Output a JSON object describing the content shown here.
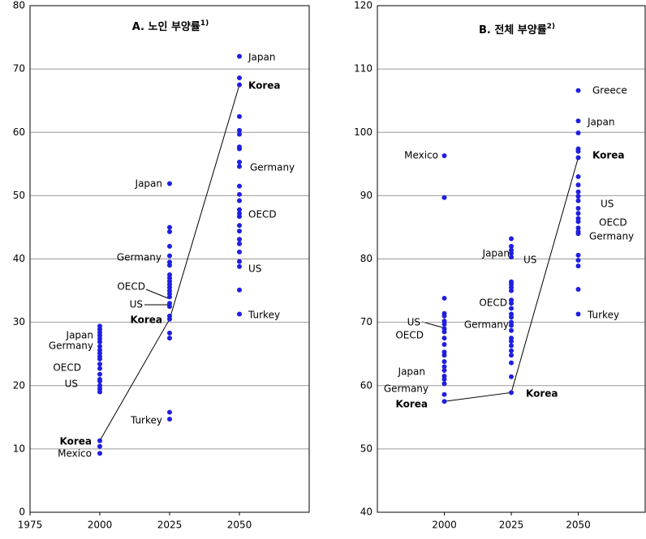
{
  "chart_data": [
    {
      "type": "scatter",
      "title": "A. 노인 부양률",
      "title_note": "1)",
      "xlim": [
        1975,
        2075
      ],
      "xticks": [
        1975,
        2000,
        2025,
        2050
      ],
      "ylim": [
        0,
        80
      ],
      "yticks": [
        0,
        10,
        20,
        30,
        40,
        50,
        60,
        70,
        80
      ],
      "grid": true,
      "color": "#1f1fe0",
      "line_color": "#000000",
      "groups": [
        {
          "x": 2000,
          "values": [
            9.3,
            10.4,
            11.3,
            19,
            19.5,
            20,
            20.7,
            21,
            21.8,
            22.7,
            23.4,
            24.2,
            24.6,
            25.1,
            25.6,
            26.2,
            26.9,
            27.4,
            27.9,
            28.4,
            28.9,
            29.4
          ]
        },
        {
          "x": 2025,
          "values": [
            51.9,
            45,
            44.3,
            42,
            40.5,
            39.5,
            39,
            37.5,
            37,
            36.5,
            36,
            35.5,
            35,
            34.5,
            34,
            33,
            32.5,
            31,
            30.5,
            28.3,
            27.5,
            15.8,
            14.7
          ]
        },
        {
          "x": 2050,
          "values": [
            72,
            68.6,
            67.5,
            62.5,
            60.3,
            59.7,
            57.7,
            57.4,
            55.3,
            54.6,
            51.5,
            50.2,
            49.2,
            47.8,
            47.2,
            46.7,
            45.3,
            44.4,
            43.1,
            42.4,
            41.1,
            39.6,
            38.8,
            35.1,
            31.3
          ]
        }
      ],
      "korea_line": {
        "x": [
          2000,
          2025,
          2050
        ],
        "values": [
          11.3,
          30.5,
          67.5
        ]
      },
      "annotations": [
        "Japan",
        "Korea",
        "Germany",
        "OECD",
        "US",
        "Turkey",
        "Japan",
        "Germany",
        "OECD",
        "US",
        "Korea",
        "Turkey",
        "Japan",
        "Germany",
        "OECD",
        "US",
        "Korea",
        "Mexico"
      ]
    },
    {
      "type": "scatter",
      "title": "B. 전체 부양률",
      "title_note": "2)",
      "xlim": [
        1975,
        2075
      ],
      "xticks": [
        2000,
        2025,
        2050
      ],
      "ylim": [
        40,
        120
      ],
      "yticks": [
        40,
        50,
        60,
        70,
        80,
        90,
        100,
        110,
        120
      ],
      "grid": true,
      "color": "#1f1fe0",
      "line_color": "#000000",
      "groups": [
        {
          "x": 2000,
          "values": [
            96.3,
            89.7,
            73.8,
            71.4,
            71,
            70.2,
            69.7,
            69,
            68.5,
            67.5,
            66.5,
            65.3,
            64.8,
            63.8,
            63,
            62.4,
            61.5,
            61,
            60.3,
            58.6,
            57.5
          ]
        },
        {
          "x": 2025,
          "values": [
            83.2,
            82,
            81.4,
            80.9,
            80.3,
            76.4,
            76,
            75.5,
            75,
            73.5,
            73,
            72.2,
            71.3,
            70.8,
            70,
            69.5,
            68.7,
            67.5,
            67,
            66.3,
            65.5,
            64.8,
            63.6,
            61.4,
            58.9
          ]
        },
        {
          "x": 2050,
          "values": [
            106.6,
            101.8,
            99.9,
            97.4,
            97,
            96,
            93,
            91.7,
            90.6,
            89.9,
            89.2,
            88,
            87.2,
            86.4,
            85.9,
            84.9,
            84.3,
            84,
            80.6,
            79.8,
            78.9,
            75.2,
            71.3
          ]
        }
      ],
      "korea_line": {
        "x": [
          2000,
          2025,
          2050
        ],
        "values": [
          57.5,
          58.9,
          96
        ]
      },
      "annotations": [
        "Greece",
        "Japan",
        "Korea",
        "US",
        "OECD",
        "Germany",
        "Turkey",
        "Mexico",
        "Japan",
        "US",
        "OECD",
        "Germany",
        "Korea",
        "US",
        "OECD",
        "Japan",
        "Germany",
        "Korea"
      ]
    }
  ]
}
